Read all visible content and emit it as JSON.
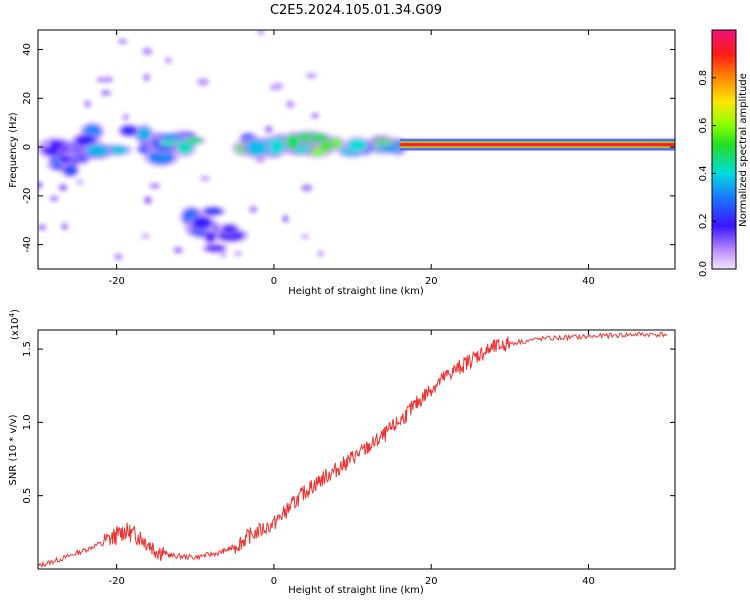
{
  "title": "C2E5.2024.105.01.34.G09",
  "chart_data": [
    {
      "type": "heatmap",
      "xlabel": "Height of straight line (km)",
      "ylabel": "Frequency (Hz)",
      "xlim": [
        -30,
        51
      ],
      "ylim": [
        -50,
        48
      ],
      "xticks": [
        -20,
        0,
        20,
        40
      ],
      "yticks": [
        -40,
        -20,
        0,
        20,
        40
      ],
      "colorbar": {
        "label": "Normalized spectral amplitude",
        "range": [
          0,
          1
        ],
        "ticks": [
          "0.0",
          "0.2",
          "0.4",
          "0.6",
          "0.8"
        ],
        "tick_values": [
          0.0,
          0.2,
          0.4,
          0.6,
          0.8
        ]
      },
      "features": [
        {
          "x": [
            -29,
            -22
          ],
          "y": [
            -10,
            0
          ],
          "level": 0.3
        },
        {
          "x": [
            -24,
            -14
          ],
          "y": [
            -5,
            7
          ],
          "level": 0.35
        },
        {
          "x": [
            -14,
            -8
          ],
          "y": [
            -1,
            4
          ],
          "level": 0.45
        },
        {
          "x": [
            -5,
            16
          ],
          "y": [
            -2,
            4
          ],
          "level": 0.55
        },
        {
          "x": [
            16,
            51
          ],
          "y": [
            -1,
            3
          ],
          "level": 1.0
        },
        {
          "x": [
            -11,
            -5
          ],
          "y": [
            -50,
            -25
          ],
          "level": 0.3
        }
      ]
    },
    {
      "type": "line",
      "xlabel": "Height of straight line (km)",
      "ylabel": "SNR (10 * v/v)",
      "yscale_label": "(x10",
      "yscale_exp": "4",
      "yscale_close": ")",
      "xlim": [
        -30,
        51
      ],
      "ylim": [
        0,
        16300
      ],
      "xticks": [
        -20,
        0,
        20,
        40
      ],
      "yticks": [
        5000,
        10000,
        15000
      ],
      "ytick_labels": [
        "0.5",
        "1.0",
        "1.5"
      ],
      "series_color": "#ee3333",
      "x": [
        -30,
        -27,
        -24,
        -21,
        -19,
        -17,
        -15,
        -13,
        -10,
        -7,
        -5,
        -3,
        0,
        2,
        4,
        6,
        8,
        10,
        12,
        14,
        16,
        18,
        20,
        22,
        24,
        26,
        28,
        30,
        34,
        38,
        42,
        46,
        50
      ],
      "y": [
        200,
        700,
        1300,
        2000,
        2600,
        2200,
        1300,
        900,
        800,
        1100,
        1500,
        2300,
        3100,
        4200,
        5300,
        6100,
        6800,
        7600,
        8300,
        9100,
        10100,
        11200,
        12300,
        13200,
        13900,
        14600,
        15100,
        15400,
        15700,
        15800,
        15900,
        16000,
        16000
      ]
    }
  ]
}
